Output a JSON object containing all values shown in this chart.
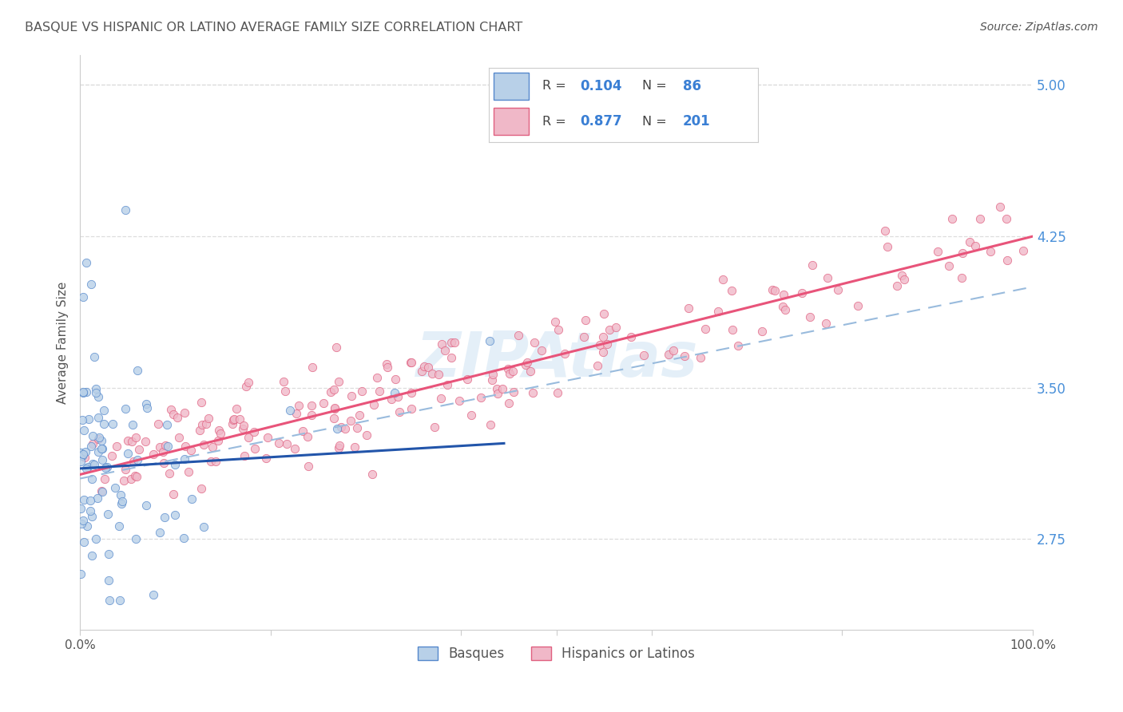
{
  "title": "BASQUE VS HISPANIC OR LATINO AVERAGE FAMILY SIZE CORRELATION CHART",
  "source": "Source: ZipAtlas.com",
  "ylabel": "Average Family Size",
  "ytick_labels": [
    "2.75",
    "3.50",
    "4.25",
    "5.00"
  ],
  "ytick_values": [
    2.75,
    3.5,
    4.25,
    5.0
  ],
  "watermark": "ZIPAtlas",
  "legend_basque_R": "0.104",
  "legend_basque_N": "86",
  "legend_hispanic_R": "0.877",
  "legend_hispanic_N": "201",
  "legend_label_basque": "Basques",
  "legend_label_hispanic": "Hispanics or Latinos",
  "basque_color": "#b8d0e8",
  "basque_edge_color": "#5588cc",
  "basque_line_color": "#2255aa",
  "hispanic_color": "#f0b8c8",
  "hispanic_edge_color": "#e06080",
  "hispanic_line_color": "#e8547a",
  "trendline_dashed_color": "#99bbdd",
  "axis_color": "#cccccc",
  "grid_color": "#dddddd",
  "title_color": "#555555",
  "right_tick_color": "#4a90d9",
  "legend_N_color": "#3a7fd4",
  "background_color": "#ffffff",
  "xlim": [
    0.0,
    1.0
  ],
  "ylim": [
    2.3,
    5.15
  ],
  "basque_intercept": 3.1,
  "basque_slope": 0.28,
  "hispanic_intercept": 3.07,
  "hispanic_slope": 1.18,
  "dashed_intercept": 3.05,
  "dashed_slope": 0.95
}
